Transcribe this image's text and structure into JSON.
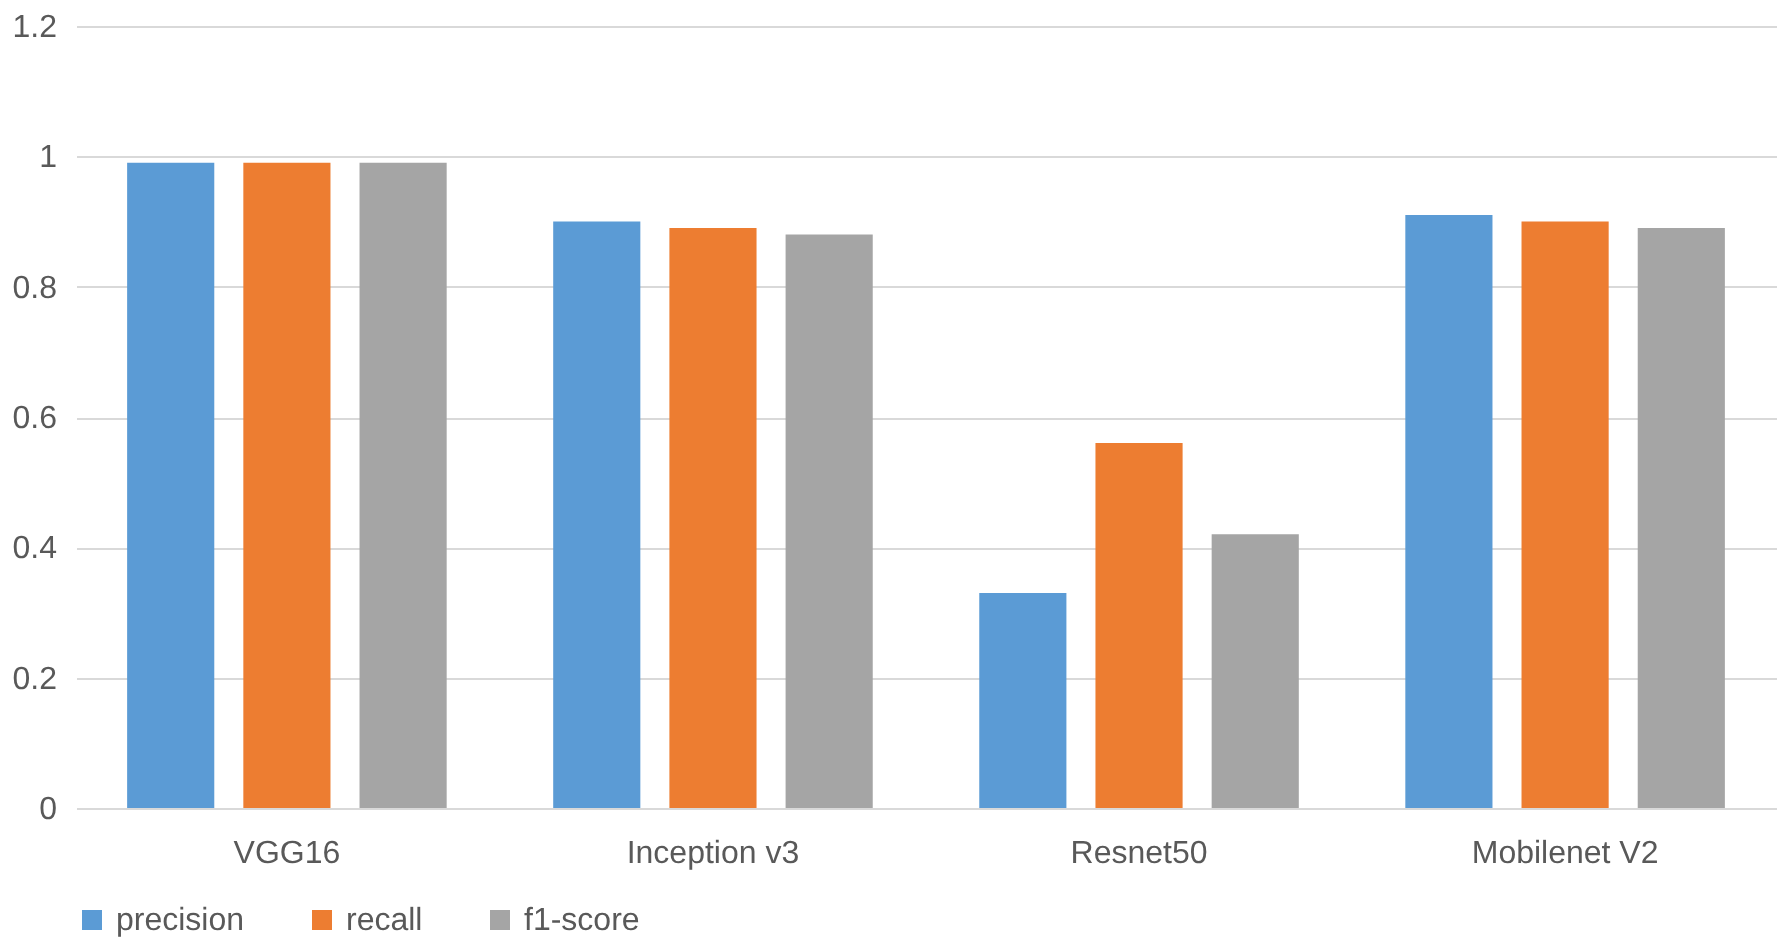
{
  "chart_data": {
    "type": "bar",
    "categories": [
      "VGG16",
      "Inception v3",
      "Resnet50",
      "Mobilenet V2"
    ],
    "series": [
      {
        "name": "precision",
        "color": "#5b9bd5",
        "values": [
          0.99,
          0.9,
          0.33,
          0.91
        ]
      },
      {
        "name": "recall",
        "color": "#ed7d31",
        "values": [
          0.99,
          0.89,
          0.56,
          0.9
        ]
      },
      {
        "name": "f1-score",
        "color": "#a5a5a5",
        "values": [
          0.99,
          0.88,
          0.42,
          0.89
        ]
      }
    ],
    "ylim": [
      0,
      1.2
    ],
    "yticks": [
      0,
      0.2,
      0.4,
      0.6,
      0.8,
      1,
      1.2
    ],
    "grid": "y",
    "legend": "bottom"
  }
}
